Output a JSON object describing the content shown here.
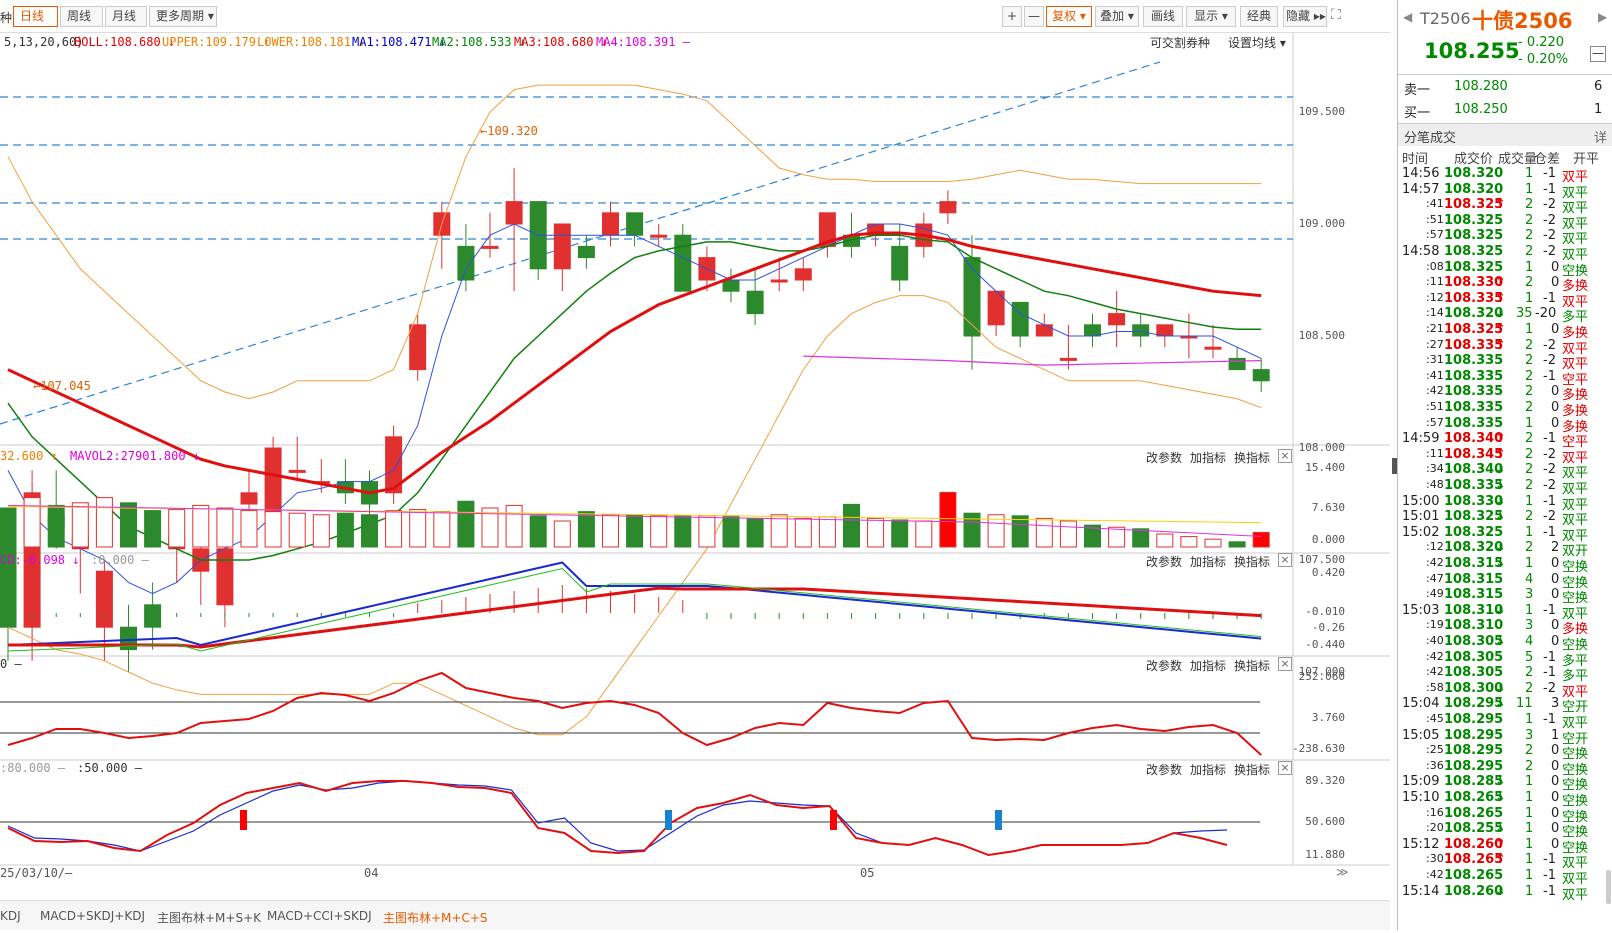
{
  "toolbar": {
    "prefix": "种",
    "periods": [
      "日线",
      "周线",
      "月线",
      "更多周期 ▾"
    ],
    "right": [
      "+",
      "—",
      "复权 ▾",
      "叠加 ▾",
      "画线",
      "显示 ▾",
      "经典",
      "隐藏 ▸▸"
    ]
  },
  "boll_legend": [
    {
      "t": "5,13,20,60)",
      "c": "#333"
    },
    {
      "t": "BOLL:108.680 ↓",
      "c": "#e00000"
    },
    {
      "t": "UPPER:109.179 ↑",
      "c": "#f08000"
    },
    {
      "t": "LOWER:108.181 ↓",
      "c": "#f08000"
    },
    {
      "t": "MA1:108.471 ↓",
      "c": "#0000cc"
    },
    {
      "t": "MA2:108.533 ↓",
      "c": "#008800"
    },
    {
      "t": "MA3:108.680 ↓",
      "c": "#e00000"
    },
    {
      "t": "MA4:108.391 –",
      "c": "#dd00dd"
    }
  ],
  "main_links": [
    "可交割券种",
    "设置均线 ▾"
  ],
  "chart_data": {
    "type": "candlestick",
    "y_axis": [
      "109.500",
      "109.000",
      "108.500",
      "108.000",
      "107.500",
      "107.000"
    ],
    "annotations": [
      "109.320",
      "107.045"
    ],
    "x_labels": [
      "25/03/10/—",
      "04",
      "05"
    ],
    "volume_legend": [
      {
        "t": "32.600 ↑",
        "c": "#f08000"
      },
      {
        "t": "MAVOL2:27901.800 ↓",
        "c": "#dd00dd"
      }
    ],
    "volume_axis": [
      "15.400",
      "7.630",
      "0.000"
    ],
    "macd_legend": [
      {
        "t": "CD:-0.098 ↓",
        "c": "#dd00dd"
      },
      {
        "t": ":0.000 –",
        "c": "#999"
      }
    ],
    "macd_axis": [
      "0.420",
      "-0.010",
      "-0.26",
      "-0.440"
    ],
    "cci_legend": [
      {
        "t": "0 –",
        "c": "#333"
      }
    ],
    "cci_axis": [
      "252.060",
      "3.760",
      "-238.630"
    ],
    "kdj_legend": [
      {
        "t": ":80.000 –",
        "c": "#999"
      },
      {
        "t": ":50.000 –",
        "c": "#333"
      }
    ],
    "kdj_axis": [
      "89.320",
      "50.600",
      "11.880"
    ]
  },
  "panel_links": [
    "改参数",
    "加指标",
    "换指标"
  ],
  "bottom_tabs": [
    "KDJ",
    "MACD+SKDJ+KDJ",
    "主图布林+M+S+K",
    "MACD+CCI+SKDJ",
    "主图布林+M+C+S"
  ],
  "right_panel": {
    "code": "T2506",
    "name": "十债2506",
    "price": "108.255",
    "change": "- 0.220",
    "pct": "- 0.20%",
    "sell_label": "卖一",
    "sell_price": "108.280",
    "sell_qty": "6",
    "buy_label": "买一",
    "buy_price": "108.250",
    "buy_qty": "1",
    "trades_title": "分笔成交",
    "detail": "详",
    "headers": [
      "时间",
      "成交价",
      "成交量",
      "仓差",
      "开平"
    ],
    "trades": [
      [
        "14:56",
        "108.320",
        "",
        "1",
        "-1",
        "双平",
        "r"
      ],
      [
        "14:57",
        "108.320",
        "",
        "1",
        "-1",
        "双平",
        "g"
      ],
      [
        ":41",
        "108.325",
        "↑",
        "2",
        "-2",
        "双平",
        "g"
      ],
      [
        ":51",
        "108.325",
        "",
        "2",
        "-2",
        "双平",
        "g"
      ],
      [
        ":57",
        "108.325",
        "",
        "2",
        "-2",
        "双平",
        "g"
      ],
      [
        "14:58",
        "108.325",
        "",
        "2",
        "-2",
        "双平",
        "g"
      ],
      [
        ":08",
        "108.325",
        "",
        "1",
        "0",
        "空换",
        "g"
      ],
      [
        ":11",
        "108.330",
        "↑",
        "2",
        "0",
        "多换",
        "r"
      ],
      [
        ":12",
        "108.335",
        "↑",
        "1",
        "-1",
        "双平",
        "r"
      ],
      [
        ":14",
        "108.320",
        "↓",
        "35",
        "-20",
        "多平",
        "g"
      ],
      [
        ":21",
        "108.325",
        "↑",
        "1",
        "0",
        "多换",
        "r"
      ],
      [
        ":27",
        "108.335",
        "↑",
        "2",
        "-2",
        "双平",
        "r"
      ],
      [
        ":31",
        "108.335",
        "",
        "2",
        "-2",
        "双平",
        "r"
      ],
      [
        ":41",
        "108.335",
        "",
        "2",
        "-1",
        "空平",
        "r"
      ],
      [
        ":42",
        "108.335",
        "",
        "2",
        "0",
        "多换",
        "r"
      ],
      [
        ":51",
        "108.335",
        "",
        "2",
        "0",
        "多换",
        "r"
      ],
      [
        ":57",
        "108.335",
        "",
        "1",
        "0",
        "多换",
        "r"
      ],
      [
        "14:59",
        "108.340",
        "↑",
        "2",
        "-1",
        "空平",
        "r"
      ],
      [
        ":11",
        "108.345",
        "↑",
        "2",
        "-2",
        "双平",
        "r"
      ],
      [
        ":34",
        "108.340",
        "↓",
        "2",
        "-2",
        "双平",
        "g"
      ],
      [
        ":48",
        "108.335",
        "↓",
        "2",
        "-2",
        "双平",
        "g"
      ],
      [
        "15:00",
        "108.330",
        "↓",
        "1",
        "-1",
        "双平",
        "g"
      ],
      [
        "15:01",
        "108.325",
        "↓",
        "2",
        "-2",
        "双平",
        "g"
      ],
      [
        "15:02",
        "108.325",
        "",
        "1",
        "-1",
        "双平",
        "g"
      ],
      [
        ":12",
        "108.320",
        "↓",
        "2",
        "2",
        "双开",
        "g"
      ],
      [
        ":42",
        "108.315",
        "↓",
        "1",
        "0",
        "空换",
        "g"
      ],
      [
        ":47",
        "108.315",
        "",
        "4",
        "0",
        "空换",
        "g"
      ],
      [
        ":49",
        "108.315",
        "",
        "3",
        "0",
        "空换",
        "g"
      ],
      [
        "15:03",
        "108.310",
        "↓",
        "1",
        "-1",
        "双平",
        "g"
      ],
      [
        ":19",
        "108.310",
        "",
        "3",
        "0",
        "多换",
        "r"
      ],
      [
        ":40",
        "108.305",
        "↓",
        "4",
        "0",
        "空换",
        "g"
      ],
      [
        ":42",
        "108.305",
        "",
        "5",
        "-1",
        "多平",
        "g"
      ],
      [
        ":42",
        "108.305",
        "",
        "2",
        "-1",
        "多平",
        "g"
      ],
      [
        ":58",
        "108.300",
        "↓",
        "2",
        "-2",
        "双平",
        "r"
      ],
      [
        "15:04",
        "108.295",
        "↓",
        "11",
        "3",
        "空开",
        "g"
      ],
      [
        ":45",
        "108.295",
        "",
        "1",
        "-1",
        "双平",
        "g"
      ],
      [
        "15:05",
        "108.295",
        "",
        "3",
        "1",
        "空开",
        "g"
      ],
      [
        ":25",
        "108.295",
        "",
        "2",
        "0",
        "空换",
        "g"
      ],
      [
        ":36",
        "108.295",
        "",
        "2",
        "0",
        "空换",
        "g"
      ],
      [
        "15:09",
        "108.285",
        "↓",
        "1",
        "0",
        "空换",
        "g"
      ],
      [
        "15:10",
        "108.265",
        "↓",
        "1",
        "0",
        "空换",
        "g"
      ],
      [
        ":16",
        "108.265",
        "",
        "1",
        "0",
        "空换",
        "g"
      ],
      [
        ":20",
        "108.255",
        "↓",
        "1",
        "0",
        "空换",
        "g"
      ],
      [
        "15:12",
        "108.260",
        "↑",
        "1",
        "0",
        "空换",
        "g"
      ],
      [
        ":30",
        "108.265",
        "↑",
        "1",
        "-1",
        "双平",
        "g"
      ],
      [
        ":42",
        "108.265",
        "",
        "1",
        "-1",
        "双平",
        "g"
      ],
      [
        "15:14",
        "108.260",
        "↓",
        "1",
        "-1",
        "双平",
        "g"
      ]
    ]
  }
}
